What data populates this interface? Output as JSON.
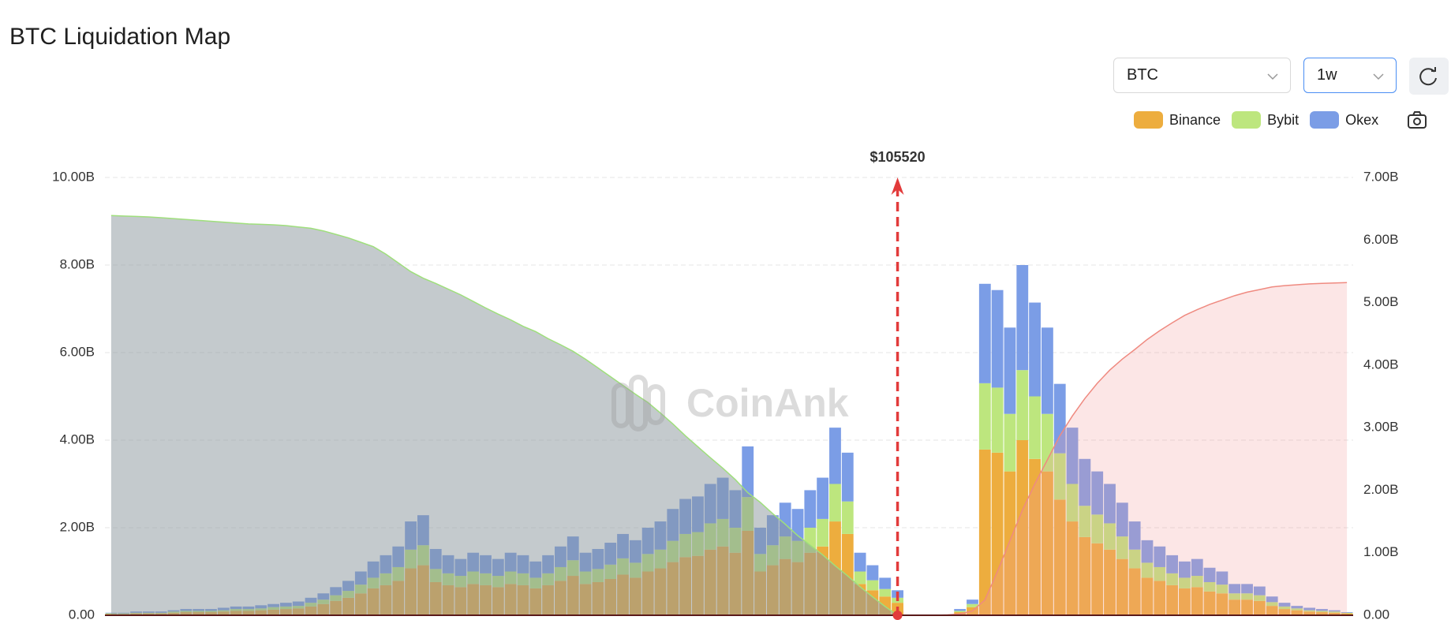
{
  "header": {
    "title": "BTC Liquidation Map"
  },
  "controls": {
    "symbol": "BTC",
    "period": "1w"
  },
  "chart_data": {
    "type": "bar",
    "stacked": true,
    "watermark": "CoinAnk",
    "current_price_label": "$105520",
    "grid": true,
    "legend": "top-right",
    "ylim": [
      0,
      10
    ],
    "yticks": [
      {
        "value": 0,
        "label": "0.00"
      },
      {
        "value": 2,
        "label": "2.00B"
      },
      {
        "value": 4,
        "label": "4.00B"
      },
      {
        "value": 6,
        "label": "6.00B"
      },
      {
        "value": 8,
        "label": "8.00B"
      },
      {
        "value": 10,
        "label": "10.00B"
      }
    ],
    "y2lim": [
      0,
      7
    ],
    "y2ticks": [
      {
        "value": 0,
        "label": "0.00"
      },
      {
        "value": 1,
        "label": "1.00B"
      },
      {
        "value": 2,
        "label": "2.00B"
      },
      {
        "value": 3,
        "label": "3.00B"
      },
      {
        "value": 4,
        "label": "4.00B"
      },
      {
        "value": 5,
        "label": "5.00B"
      },
      {
        "value": 6,
        "label": "6.00B"
      },
      {
        "value": 7,
        "label": "7.00B"
      }
    ],
    "series": [
      {
        "name": "Binance",
        "color": "#edad3e",
        "axis": "y2",
        "values": [
          0.02,
          0.02,
          0.03,
          0.03,
          0.03,
          0.04,
          0.05,
          0.05,
          0.05,
          0.06,
          0.07,
          0.07,
          0.08,
          0.09,
          0.1,
          0.11,
          0.14,
          0.18,
          0.23,
          0.28,
          0.35,
          0.43,
          0.48,
          0.55,
          0.75,
          0.8,
          0.53,
          0.48,
          0.45,
          0.5,
          0.48,
          0.45,
          0.5,
          0.48,
          0.43,
          0.48,
          0.55,
          0.63,
          0.5,
          0.53,
          0.58,
          0.65,
          0.6,
          0.7,
          0.75,
          0.85,
          0.93,
          0.95,
          1.05,
          1.1,
          1.0,
          1.35,
          0.7,
          0.8,
          0.9,
          0.85,
          1.0,
          1.1,
          1.5,
          1.3,
          0.5,
          0.4,
          0.3,
          0.2,
          0,
          0,
          0,
          0,
          0.05,
          0.13,
          2.65,
          2.6,
          2.3,
          2.8,
          2.5,
          2.3,
          1.85,
          1.5,
          1.25,
          1.15,
          1.05,
          0.9,
          0.75,
          0.6,
          0.55,
          0.48,
          0.43,
          0.45,
          0.38,
          0.35,
          0.25,
          0.25,
          0.23,
          0.15,
          0.1,
          0.08,
          0.06,
          0.05,
          0.04,
          0.03
        ]
      },
      {
        "name": "Bybit",
        "color": "#bde67e",
        "axis": "y2",
        "values": [
          0.01,
          0.01,
          0.01,
          0.01,
          0.01,
          0.02,
          0.02,
          0.02,
          0.02,
          0.02,
          0.03,
          0.03,
          0.03,
          0.04,
          0.04,
          0.04,
          0.06,
          0.07,
          0.09,
          0.11,
          0.14,
          0.17,
          0.19,
          0.22,
          0.3,
          0.32,
          0.21,
          0.19,
          0.18,
          0.2,
          0.19,
          0.18,
          0.2,
          0.19,
          0.17,
          0.19,
          0.22,
          0.25,
          0.2,
          0.21,
          0.23,
          0.26,
          0.24,
          0.28,
          0.3,
          0.34,
          0.37,
          0.38,
          0.42,
          0.44,
          0.4,
          0.54,
          0.28,
          0.32,
          0.36,
          0.34,
          0.4,
          0.44,
          0.6,
          0.52,
          0.2,
          0.16,
          0.12,
          0.08,
          0,
          0,
          0,
          0,
          0.02,
          0.05,
          1.06,
          1.04,
          0.92,
          1.12,
          1.0,
          0.92,
          0.74,
          0.6,
          0.5,
          0.46,
          0.42,
          0.36,
          0.3,
          0.24,
          0.22,
          0.19,
          0.17,
          0.18,
          0.15,
          0.14,
          0.1,
          0.1,
          0.09,
          0.06,
          0.04,
          0.03,
          0.02,
          0.02,
          0.02,
          0.01
        ]
      },
      {
        "name": "Okex",
        "color": "#7b9de6",
        "axis": "y2",
        "values": [
          0.01,
          0.01,
          0.02,
          0.02,
          0.02,
          0.02,
          0.03,
          0.03,
          0.03,
          0.04,
          0.04,
          0.04,
          0.05,
          0.05,
          0.06,
          0.07,
          0.08,
          0.1,
          0.13,
          0.16,
          0.21,
          0.26,
          0.29,
          0.33,
          0.45,
          0.48,
          0.32,
          0.29,
          0.27,
          0.3,
          0.29,
          0.27,
          0.3,
          0.29,
          0.26,
          0.29,
          0.33,
          0.38,
          0.3,
          0.32,
          0.35,
          0.39,
          0.36,
          0.42,
          0.45,
          0.51,
          0.56,
          0.57,
          0.63,
          0.66,
          0.6,
          0.81,
          0.42,
          0.48,
          0.54,
          0.51,
          0.6,
          0.66,
          0.9,
          0.78,
          0.3,
          0.24,
          0.18,
          0.12,
          0,
          0,
          0,
          0,
          0.03,
          0.07,
          1.59,
          1.56,
          1.38,
          1.68,
          1.5,
          1.38,
          1.11,
          0.9,
          0.75,
          0.69,
          0.63,
          0.54,
          0.45,
          0.36,
          0.33,
          0.29,
          0.26,
          0.27,
          0.23,
          0.21,
          0.15,
          0.15,
          0.14,
          0.09,
          0.06,
          0.04,
          0.04,
          0.03,
          0.02,
          0.01
        ]
      }
    ],
    "cumulative_long": {
      "color": "#9fdf7c",
      "fill": "#8a959b",
      "values": [
        9.13,
        9.12,
        9.11,
        9.1,
        9.08,
        9.06,
        9.04,
        9.02,
        9.0,
        8.98,
        8.96,
        8.94,
        8.93,
        8.92,
        8.9,
        8.87,
        8.84,
        8.78,
        8.7,
        8.62,
        8.52,
        8.42,
        8.25,
        8.05,
        7.85,
        7.7,
        7.58,
        7.45,
        7.32,
        7.17,
        7.02,
        6.88,
        6.75,
        6.6,
        6.48,
        6.32,
        6.18,
        6.03,
        5.85,
        5.65,
        5.45,
        5.25,
        5.05,
        4.86,
        4.62,
        4.37,
        4.1,
        3.85,
        3.6,
        3.36,
        3.1,
        2.8,
        2.58,
        2.32,
        2.08,
        1.82,
        1.6,
        1.38,
        1.13,
        0.9,
        0.65,
        0.42,
        0.2,
        0,
        null,
        null,
        null,
        null,
        null,
        null,
        null,
        null,
        null,
        null,
        null,
        null,
        null,
        null,
        null,
        null,
        null,
        null,
        null,
        null,
        null,
        null,
        null,
        null,
        null,
        null,
        null,
        null,
        null,
        null,
        null,
        null,
        null,
        null,
        null,
        null
      ]
    },
    "cumulative_short": {
      "color": "#ef8a80",
      "fill": "#f59a9a",
      "values": [
        null,
        null,
        null,
        null,
        null,
        null,
        null,
        null,
        null,
        null,
        null,
        null,
        null,
        null,
        null,
        null,
        null,
        null,
        null,
        null,
        null,
        null,
        null,
        null,
        null,
        null,
        null,
        null,
        null,
        null,
        null,
        null,
        null,
        null,
        null,
        null,
        null,
        null,
        null,
        null,
        null,
        null,
        null,
        null,
        null,
        null,
        null,
        null,
        null,
        null,
        null,
        null,
        null,
        null,
        null,
        null,
        null,
        null,
        null,
        null,
        null,
        null,
        null,
        null,
        0,
        0,
        0,
        0.01,
        0.03,
        0.1,
        0.35,
        1.0,
        1.7,
        2.4,
        3.0,
        3.55,
        4.1,
        4.55,
        4.95,
        5.3,
        5.6,
        5.85,
        6.07,
        6.3,
        6.5,
        6.68,
        6.85,
        6.98,
        7.1,
        7.2,
        7.3,
        7.38,
        7.44,
        7.5,
        7.53,
        7.55,
        7.57,
        7.58,
        7.59,
        7.6
      ]
    }
  }
}
